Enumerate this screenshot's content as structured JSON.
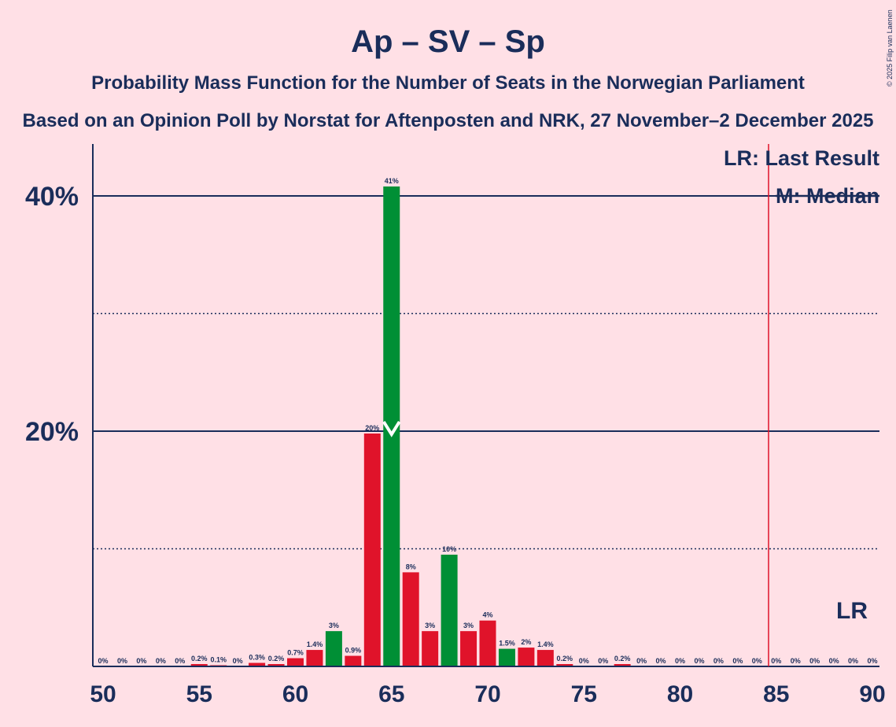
{
  "title": "Ap – SV – Sp",
  "subtitle": "Probability Mass Function for the Number of Seats in the Norwegian Parliament",
  "subtitle2": "Based on an Opinion Poll by Norstat for Aftenposten and NRK, 27 November–2 December 2025",
  "copyright": "© 2025 Filip van Laenen",
  "legend": {
    "last_result": "LR: Last Result",
    "median": "M: Median"
  },
  "lr_label": "LR",
  "median_marker": "M",
  "colors": {
    "background": "#FFE0E6",
    "text": "#1A2D5A",
    "bar_red": "#E0132A",
    "bar_green": "#008F35",
    "last_result_line": "#E0132A"
  },
  "chart_data": {
    "type": "bar",
    "xlabel": "",
    "ylabel": "",
    "xlim": [
      50,
      90
    ],
    "ylim": [
      0,
      44.5
    ],
    "x_ticks": [
      "50",
      "55",
      "60",
      "65",
      "70",
      "75",
      "80",
      "85",
      "90"
    ],
    "y_ticks": [
      {
        "value": 20,
        "label": "20%"
      },
      {
        "value": 40,
        "label": "40%"
      }
    ],
    "dotted_gridlines": [
      10,
      30
    ],
    "median": 65,
    "last_result": 84.6,
    "highlighted_bars": [
      62,
      65,
      68,
      71
    ],
    "bars": [
      {
        "x": 50,
        "value": 0,
        "label": "0%"
      },
      {
        "x": 51,
        "value": 0,
        "label": "0%"
      },
      {
        "x": 52,
        "value": 0,
        "label": "0%"
      },
      {
        "x": 53,
        "value": 0,
        "label": "0%"
      },
      {
        "x": 54,
        "value": 0,
        "label": "0%"
      },
      {
        "x": 55,
        "value": 0.2,
        "label": "0.2%"
      },
      {
        "x": 56,
        "value": 0.1,
        "label": "0.1%"
      },
      {
        "x": 57,
        "value": 0,
        "label": "0%"
      },
      {
        "x": 58,
        "value": 0.3,
        "label": "0.3%"
      },
      {
        "x": 59,
        "value": 0.2,
        "label": "0.2%"
      },
      {
        "x": 60,
        "value": 0.7,
        "label": "0.7%"
      },
      {
        "x": 61,
        "value": 1.4,
        "label": "1.4%"
      },
      {
        "x": 62,
        "value": 3.0,
        "label": "3%"
      },
      {
        "x": 63,
        "value": 0.9,
        "label": "0.9%"
      },
      {
        "x": 64,
        "value": 19.8,
        "label": "20%"
      },
      {
        "x": 65,
        "value": 40.8,
        "label": "41%"
      },
      {
        "x": 66,
        "value": 8.0,
        "label": "8%"
      },
      {
        "x": 67,
        "value": 3.0,
        "label": "3%"
      },
      {
        "x": 68,
        "value": 9.5,
        "label": "10%"
      },
      {
        "x": 69,
        "value": 3.0,
        "label": "3%"
      },
      {
        "x": 70,
        "value": 3.9,
        "label": "4%"
      },
      {
        "x": 71,
        "value": 1.5,
        "label": "1.5%"
      },
      {
        "x": 72,
        "value": 1.6,
        "label": "2%"
      },
      {
        "x": 73,
        "value": 1.4,
        "label": "1.4%"
      },
      {
        "x": 74,
        "value": 0.2,
        "label": "0.2%"
      },
      {
        "x": 75,
        "value": 0,
        "label": "0%"
      },
      {
        "x": 76,
        "value": 0,
        "label": "0%"
      },
      {
        "x": 77,
        "value": 0.2,
        "label": "0.2%"
      },
      {
        "x": 78,
        "value": 0,
        "label": "0%"
      },
      {
        "x": 79,
        "value": 0,
        "label": "0%"
      },
      {
        "x": 80,
        "value": 0,
        "label": "0%"
      },
      {
        "x": 81,
        "value": 0,
        "label": "0%"
      },
      {
        "x": 82,
        "value": 0,
        "label": "0%"
      },
      {
        "x": 83,
        "value": 0,
        "label": "0%"
      },
      {
        "x": 84,
        "value": 0,
        "label": "0%"
      },
      {
        "x": 85,
        "value": 0,
        "label": "0%"
      },
      {
        "x": 86,
        "value": 0,
        "label": "0%"
      },
      {
        "x": 87,
        "value": 0,
        "label": "0%"
      },
      {
        "x": 88,
        "value": 0,
        "label": "0%"
      },
      {
        "x": 89,
        "value": 0,
        "label": "0%"
      },
      {
        "x": 90,
        "value": 0,
        "label": "0%"
      }
    ]
  }
}
